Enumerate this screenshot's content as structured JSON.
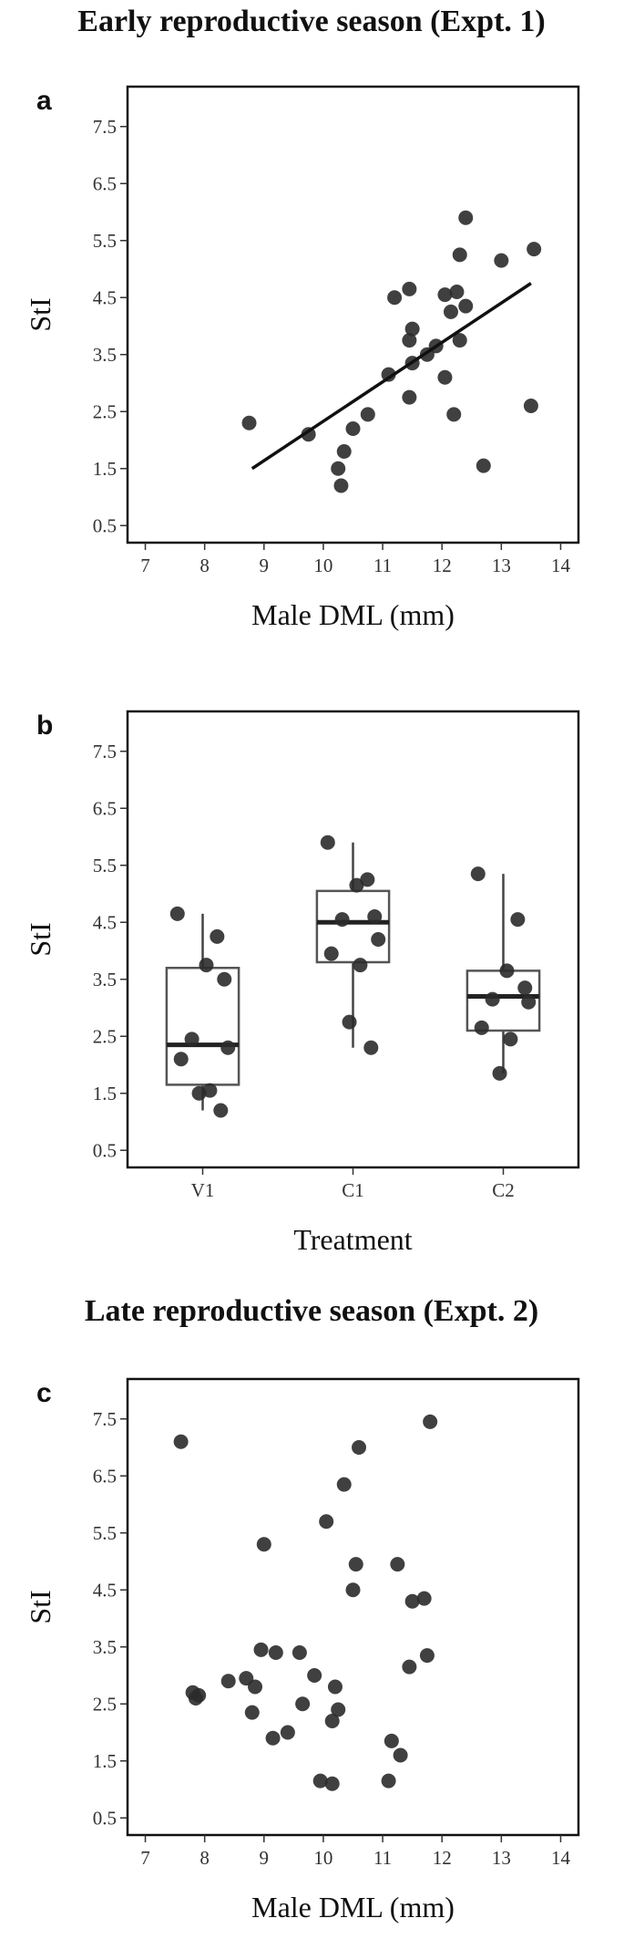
{
  "titles": {
    "expt1": "Early reproductive season (Expt. 1)",
    "expt2": "Late reproductive season (Expt. 2)"
  },
  "chart_data": [
    {
      "panel": "a",
      "type": "scatter",
      "xlabel": "Male DML (mm)",
      "ylabel": "StI",
      "xticks": [
        7,
        8,
        9,
        10,
        11,
        12,
        13,
        14
      ],
      "yticks": [
        0.5,
        1.5,
        2.5,
        3.5,
        4.5,
        5.5,
        6.5,
        7.5
      ],
      "xlim": [
        6.7,
        14.3
      ],
      "ylim": [
        0.2,
        8.2
      ],
      "points": [
        [
          8.75,
          2.3
        ],
        [
          9.75,
          2.1
        ],
        [
          10.25,
          1.5
        ],
        [
          10.35,
          1.8
        ],
        [
          10.3,
          1.2
        ],
        [
          10.5,
          2.2
        ],
        [
          10.75,
          2.45
        ],
        [
          11.1,
          3.15
        ],
        [
          11.2,
          4.5
        ],
        [
          11.45,
          4.65
        ],
        [
          11.5,
          3.95
        ],
        [
          11.45,
          3.75
        ],
        [
          11.5,
          3.35
        ],
        [
          11.45,
          2.75
        ],
        [
          11.75,
          3.5
        ],
        [
          11.9,
          3.65
        ],
        [
          12.05,
          3.1
        ],
        [
          12.05,
          4.55
        ],
        [
          12.15,
          4.25
        ],
        [
          12.2,
          2.45
        ],
        [
          12.25,
          4.6
        ],
        [
          12.3,
          5.25
        ],
        [
          12.3,
          3.75
        ],
        [
          12.4,
          4.35
        ],
        [
          12.4,
          5.9
        ],
        [
          12.7,
          1.55
        ],
        [
          13.0,
          5.15
        ],
        [
          13.5,
          2.6
        ],
        [
          13.55,
          5.35
        ]
      ],
      "trend": [
        [
          8.8,
          1.5
        ],
        [
          13.5,
          4.75
        ]
      ]
    },
    {
      "panel": "b",
      "type": "box",
      "xlabel": "Treatment",
      "ylabel": "StI",
      "categories": [
        "V1",
        "C1",
        "C2"
      ],
      "yticks": [
        0.5,
        1.5,
        2.5,
        3.5,
        4.5,
        5.5,
        6.5,
        7.5
      ],
      "ylim": [
        0.2,
        8.2
      ],
      "boxes": [
        {
          "name": "V1",
          "q1": 1.65,
          "median": 2.35,
          "q3": 3.7,
          "whisker_low": 1.2,
          "whisker_high": 4.65,
          "points": [
            4.65,
            4.25,
            3.75,
            3.5,
            2.45,
            2.3,
            2.1,
            1.55,
            1.5,
            1.2
          ]
        },
        {
          "name": "C1",
          "q1": 3.8,
          "median": 4.5,
          "q3": 5.05,
          "whisker_low": 2.3,
          "whisker_high": 5.9,
          "points": [
            5.9,
            5.25,
            5.15,
            4.6,
            4.55,
            4.2,
            3.95,
            3.75,
            2.75,
            2.3
          ]
        },
        {
          "name": "C2",
          "q1": 2.6,
          "median": 3.2,
          "q3": 3.65,
          "whisker_low": 1.85,
          "whisker_high": 5.35,
          "points": [
            5.35,
            4.55,
            3.65,
            3.35,
            3.15,
            3.1,
            2.65,
            2.45,
            1.85
          ]
        }
      ]
    },
    {
      "panel": "c",
      "type": "scatter",
      "xlabel": "Male DML (mm)",
      "ylabel": "StI",
      "xticks": [
        7,
        8,
        9,
        10,
        11,
        12,
        13,
        14
      ],
      "yticks": [
        0.5,
        1.5,
        2.5,
        3.5,
        4.5,
        5.5,
        6.5,
        7.5
      ],
      "xlim": [
        6.7,
        14.3
      ],
      "ylim": [
        0.2,
        8.2
      ],
      "points": [
        [
          7.6,
          7.1
        ],
        [
          7.8,
          2.7
        ],
        [
          7.9,
          2.65
        ],
        [
          7.85,
          2.6
        ],
        [
          8.4,
          2.9
        ],
        [
          8.7,
          2.95
        ],
        [
          8.8,
          2.35
        ],
        [
          8.85,
          2.8
        ],
        [
          9.0,
          5.3
        ],
        [
          8.95,
          3.45
        ],
        [
          9.15,
          1.9
        ],
        [
          9.2,
          3.4
        ],
        [
          9.4,
          2.0
        ],
        [
          9.6,
          3.4
        ],
        [
          9.65,
          2.5
        ],
        [
          9.85,
          3.0
        ],
        [
          9.95,
          1.15
        ],
        [
          10.05,
          5.7
        ],
        [
          10.15,
          1.1
        ],
        [
          10.15,
          2.2
        ],
        [
          10.2,
          2.8
        ],
        [
          10.25,
          2.4
        ],
        [
          10.35,
          6.35
        ],
        [
          10.5,
          4.5
        ],
        [
          10.55,
          4.95
        ],
        [
          10.6,
          7.0
        ],
        [
          11.1,
          1.15
        ],
        [
          11.15,
          1.85
        ],
        [
          11.25,
          4.95
        ],
        [
          11.3,
          1.6
        ],
        [
          11.45,
          3.15
        ],
        [
          11.5,
          4.3
        ],
        [
          11.7,
          4.35
        ],
        [
          11.75,
          3.35
        ],
        [
          11.8,
          7.45
        ]
      ]
    }
  ]
}
